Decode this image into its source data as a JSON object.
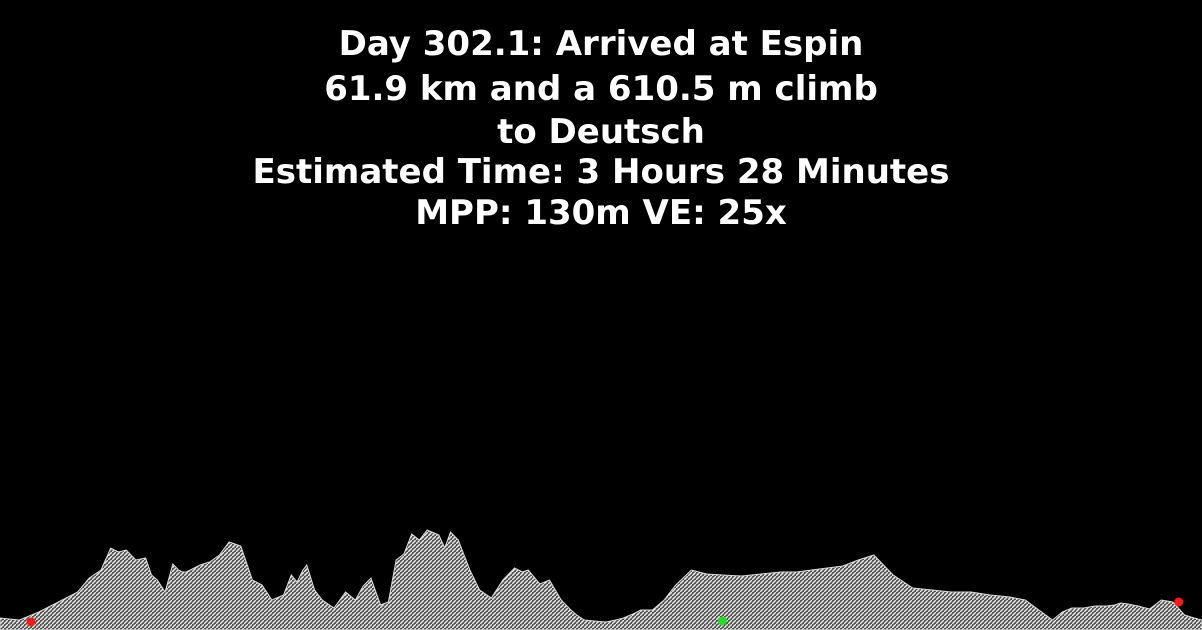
{
  "header": {
    "title": "Day 302.1: Arrived at Espin",
    "distance_line": "61.9 km and a 610.5 m climb",
    "destination_line": "to Deutsch",
    "time_line": "Estimated Time: 3 Hours 28 Minutes",
    "scale_line": "MPP: 130m VE: 25x"
  },
  "colors": {
    "background": "#000000",
    "text": "#ffffff",
    "profile_fill": "#d8d8d8",
    "start_marker": "#ff1a1a",
    "mid_marker": "#22dd22",
    "end_marker": "#ff1a1a"
  },
  "chart_data": {
    "type": "area",
    "title": "",
    "xlabel": "",
    "ylabel": "",
    "x_unit": "km",
    "y_unit": "m (relative elevation)",
    "xlim": [
      0,
      61.9
    ],
    "ylim": [
      0,
      110
    ],
    "grid": false,
    "legend": "none",
    "fill_pattern": "hatched",
    "x": [
      0,
      1.0,
      2.0,
      3.0,
      4.0,
      4.6,
      5.2,
      5.7,
      6.1,
      6.5,
      7.0,
      7.5,
      7.8,
      8.1,
      8.5,
      8.9,
      9.2,
      9.4,
      9.6,
      9.9,
      10.3,
      10.8,
      11.3,
      11.8,
      12.4,
      13.0,
      13.5,
      14.0,
      14.6,
      15.0,
      15.3,
      15.6,
      15.8,
      16.2,
      16.6,
      17.2,
      17.8,
      18.3,
      18.7,
      19.1,
      19.6,
      20.0,
      20.4,
      20.8,
      21.2,
      21.6,
      22.0,
      22.6,
      22.9,
      23.2,
      23.6,
      24.2,
      24.7,
      25.3,
      25.9,
      26.5,
      26.9,
      27.2,
      27.8,
      28.3,
      28.9,
      29.4,
      29.7,
      30.1,
      30.6,
      31.2,
      31.7,
      32.1,
      32.6,
      33.0,
      33.6,
      34.2,
      34.8,
      35.6,
      36.4,
      37.2,
      38.2,
      39.2,
      40.2,
      41.0,
      41.8,
      42.6,
      43.4,
      44.2,
      45.0,
      46.0,
      47.0,
      48.0,
      49.0,
      50.0,
      51.0,
      52.0,
      52.8,
      53.5,
      54.2,
      54.7,
      55.2,
      55.8,
      56.4,
      57.0,
      57.4,
      57.7,
      58.1,
      58.6,
      59.2,
      59.8,
      60.4,
      61.0,
      61.5,
      61.9
    ],
    "y": [
      12,
      10,
      18,
      28,
      38,
      52,
      60,
      82,
      78,
      80,
      70,
      72,
      55,
      50,
      38,
      66,
      60,
      58,
      58,
      61,
      65,
      68,
      75,
      88,
      84,
      50,
      45,
      30,
      35,
      55,
      48,
      60,
      65,
      40,
      30,
      22,
      38,
      30,
      44,
      52,
      25,
      28,
      70,
      76,
      96,
      90,
      100,
      95,
      82,
      98,
      90,
      60,
      40,
      32,
      50,
      62,
      58,
      60,
      46,
      50,
      30,
      20,
      15,
      10,
      9,
      8,
      10,
      12,
      16,
      20,
      20,
      30,
      45,
      60,
      56,
      55,
      54,
      56,
      58,
      58,
      60,
      62,
      64,
      70,
      75,
      55,
      42,
      40,
      38,
      38,
      35,
      33,
      30,
      20,
      10,
      18,
      22,
      22,
      24,
      24,
      25,
      27,
      26,
      24,
      21,
      30,
      28,
      15,
      12,
      10
    ],
    "markers": [
      {
        "x": 1.6,
        "y": 8,
        "color": "#ff1a1a"
      },
      {
        "x": 37.2,
        "y": 9,
        "color": "#22dd22"
      },
      {
        "x": 60.7,
        "y": 28,
        "color": "#ff1a1a"
      }
    ]
  }
}
